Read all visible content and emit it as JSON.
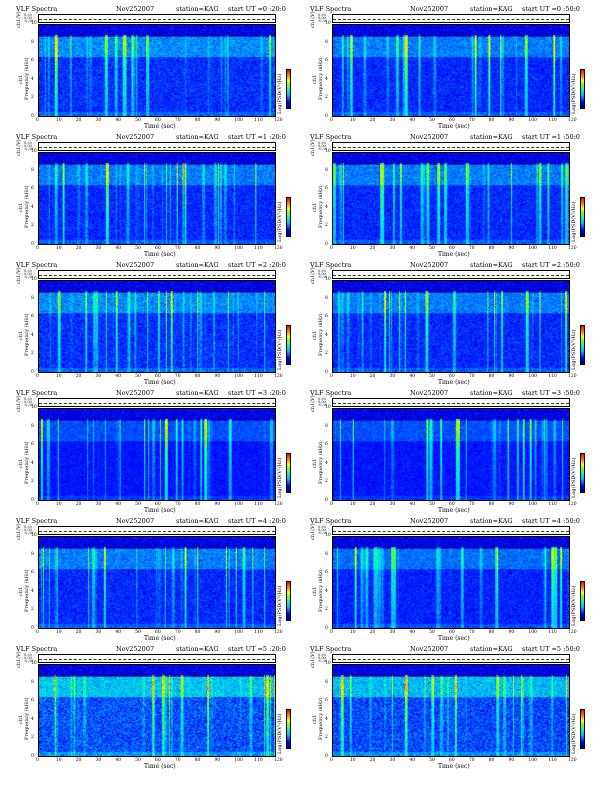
{
  "chart_data": {
    "type": "heatmap",
    "page_size": [
      612,
      792
    ],
    "common": {
      "label_left": "VLF Spectra",
      "date": "Nov252007",
      "station": "station=KAG",
      "start_prefix": "start  UT",
      "ch_label": "ch1(V)",
      "ch_ticks": [
        "0.30",
        "0.00",
        "-0.30"
      ],
      "ylabel_a": "ch1",
      "ylabel_b": "Frequency  (kHz)",
      "y_ticks": [
        "10",
        "8",
        "6",
        "4",
        "2",
        "0"
      ],
      "x_ticks": [
        "0",
        "10",
        "20",
        "30",
        "40",
        "50",
        "60",
        "70",
        "80",
        "90",
        "100",
        "110",
        "120"
      ],
      "xlabel": "Time  (sec)",
      "cbar_label": "Log(PSD(V²/Hz)",
      "xlim": [
        0,
        120
      ],
      "ylim": [
        0,
        10
      ]
    },
    "panels": [
      {
        "start": "=0 :20:0",
        "seed": 11,
        "intensity": 0.55
      },
      {
        "start": "=0 :50:0",
        "seed": 23,
        "intensity": 0.5
      },
      {
        "start": "=1 :20:0",
        "seed": 37,
        "intensity": 0.5
      },
      {
        "start": "=1 :50:0",
        "seed": 41,
        "intensity": 0.5
      },
      {
        "start": "=2 :20:0",
        "seed": 53,
        "intensity": 0.55
      },
      {
        "start": "=2 :50:0",
        "seed": 67,
        "intensity": 0.5
      },
      {
        "start": "=3 :20:0",
        "seed": 71,
        "intensity": 0.35
      },
      {
        "start": "=3 :50:0",
        "seed": 83,
        "intensity": 0.35
      },
      {
        "start": "=4 :20:0",
        "seed": 97,
        "intensity": 0.5
      },
      {
        "start": "=4 :50:0",
        "seed": 101,
        "intensity": 0.45
      },
      {
        "start": "=5 :20:0",
        "seed": 113,
        "intensity": 0.8
      },
      {
        "start": "=5 :50:0",
        "seed": 127,
        "intensity": 0.75
      }
    ]
  }
}
